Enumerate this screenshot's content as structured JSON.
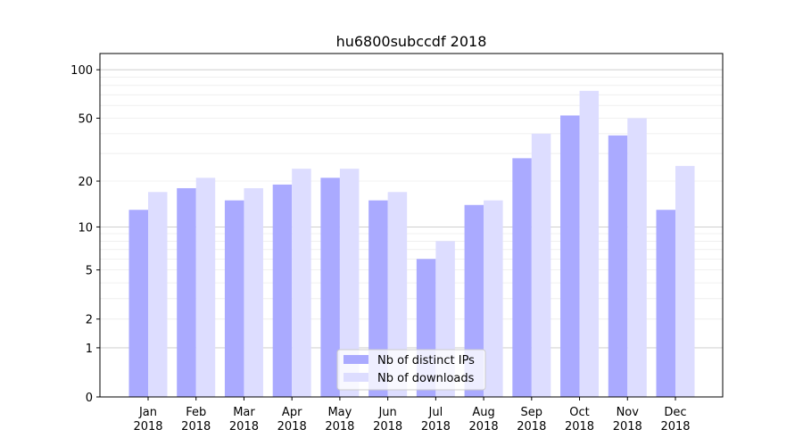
{
  "chart_data": {
    "type": "bar",
    "title": "hu6800subccdf 2018",
    "xlabel": "",
    "ylabel": "",
    "yscale": "symlog",
    "ylim": [
      0,
      120
    ],
    "yticks": [
      0,
      1,
      2,
      5,
      10,
      20,
      50,
      100
    ],
    "grid": true,
    "legend_position": "bottom-center",
    "categories": [
      "Jan\n2018",
      "Feb\n2018",
      "Mar\n2018",
      "Apr\n2018",
      "May\n2018",
      "Jun\n2018",
      "Jul\n2018",
      "Aug\n2018",
      "Sep\n2018",
      "Oct\n2018",
      "Nov\n2018",
      "Dec\n2018"
    ],
    "series": [
      {
        "name": "Nb of distinct IPs",
        "color": "#aaaaff",
        "values": [
          13,
          18,
          15,
          19,
          21,
          15,
          6,
          14,
          28,
          52,
          39,
          13
        ]
      },
      {
        "name": "Nb of downloads",
        "color": "#ddddff",
        "values": [
          17,
          21,
          18,
          24,
          24,
          17,
          8,
          15,
          40,
          74,
          50,
          25
        ]
      }
    ]
  }
}
